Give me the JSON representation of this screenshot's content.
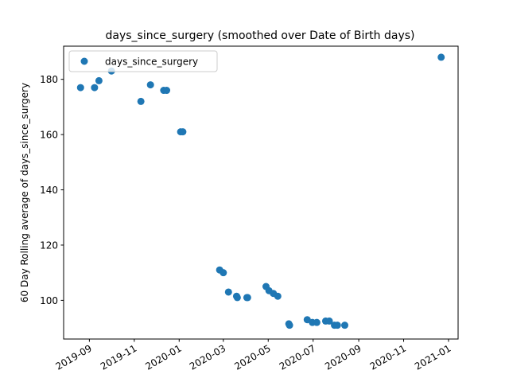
{
  "chart_data": {
    "type": "scatter",
    "title": "days_since_surgery (smoothed over Date of Birth days)",
    "xlabel": "",
    "ylabel": "60 Day Rolling average of days_since_surgery",
    "xlim": [
      "2019-07-28",
      "2021-01-14"
    ],
    "ylim": [
      86,
      192
    ],
    "x_ticks": [
      "2019-09",
      "2019-11",
      "2020-01",
      "2020-03",
      "2020-05",
      "2020-07",
      "2020-09",
      "2020-11",
      "2021-01"
    ],
    "y_ticks": [
      100,
      120,
      140,
      160,
      180
    ],
    "grid": false,
    "legend_position": "upper-left",
    "color": "#1f77b4",
    "series": [
      {
        "name": "days_since_surgery",
        "points": [
          {
            "x": "2019-08-20",
            "y": 177
          },
          {
            "x": "2019-09-08",
            "y": 177
          },
          {
            "x": "2019-09-14",
            "y": 179.5
          },
          {
            "x": "2019-10-01",
            "y": 183
          },
          {
            "x": "2019-11-10",
            "y": 172
          },
          {
            "x": "2019-11-23",
            "y": 178
          },
          {
            "x": "2019-12-11",
            "y": 176
          },
          {
            "x": "2019-12-15",
            "y": 176
          },
          {
            "x": "2020-01-03",
            "y": 161
          },
          {
            "x": "2020-01-06",
            "y": 161
          },
          {
            "x": "2020-02-25",
            "y": 111
          },
          {
            "x": "2020-03-01",
            "y": 110
          },
          {
            "x": "2020-03-08",
            "y": 103
          },
          {
            "x": "2020-03-19",
            "y": 101.5
          },
          {
            "x": "2020-03-20",
            "y": 101
          },
          {
            "x": "2020-04-02",
            "y": 101
          },
          {
            "x": "2020-04-03",
            "y": 101
          },
          {
            "x": "2020-04-28",
            "y": 105
          },
          {
            "x": "2020-05-02",
            "y": 103.5
          },
          {
            "x": "2020-05-08",
            "y": 102.5
          },
          {
            "x": "2020-05-14",
            "y": 101.5
          },
          {
            "x": "2020-05-29",
            "y": 91.5
          },
          {
            "x": "2020-05-30",
            "y": 91
          },
          {
            "x": "2020-06-23",
            "y": 93
          },
          {
            "x": "2020-06-30",
            "y": 92
          },
          {
            "x": "2020-07-06",
            "y": 92
          },
          {
            "x": "2020-07-18",
            "y": 92.5
          },
          {
            "x": "2020-07-23",
            "y": 92.5
          },
          {
            "x": "2020-07-30",
            "y": 91
          },
          {
            "x": "2020-08-03",
            "y": 91
          },
          {
            "x": "2020-08-13",
            "y": 91
          },
          {
            "x": "2020-12-22",
            "y": 188
          }
        ]
      }
    ]
  }
}
